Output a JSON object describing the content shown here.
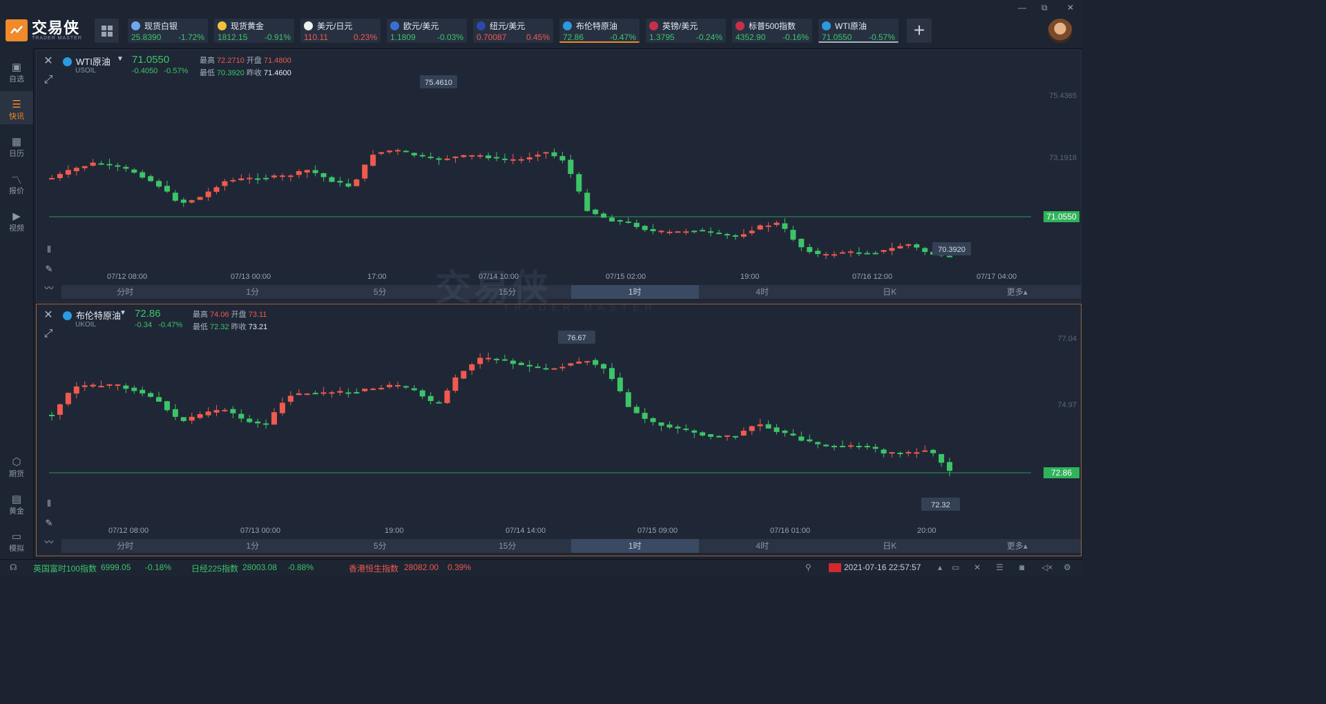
{
  "app": {
    "logo_text": "交易侠",
    "logo_sub": "TRADER MASTER",
    "window_controls": [
      "—",
      "⧉",
      "✕"
    ]
  },
  "quotes": [
    {
      "name": "现货白银",
      "price": "25.8390",
      "change": "-1.72%",
      "dir": "dn",
      "icon": "silver-coin-icon",
      "color": "#6ea8f0"
    },
    {
      "name": "现货黄金",
      "price": "1812.15",
      "change": "-0.91%",
      "dir": "dn",
      "icon": "gold-coin-icon",
      "color": "#f0c23a"
    },
    {
      "name": "美元/日元",
      "price": "110.11",
      "change": "0.23%",
      "dir": "up",
      "icon": "japan-flag-icon",
      "color": "#f0f0f0"
    },
    {
      "name": "欧元/美元",
      "price": "1.1809",
      "change": "-0.03%",
      "dir": "dn",
      "icon": "eu-flag-icon",
      "color": "#3a6fd0"
    },
    {
      "name": "纽元/美元",
      "price": "0.70087",
      "change": "0.45%",
      "dir": "up",
      "icon": "nz-flag-icon",
      "color": "#2b4aa8"
    },
    {
      "name": "布伦特原油",
      "price": "72.86",
      "change": "-0.47%",
      "dir": "dn",
      "icon": "oil-icon",
      "color": "#2a9be0"
    },
    {
      "name": "英镑/美元",
      "price": "1.3795",
      "change": "-0.24%",
      "dir": "dn",
      "icon": "uk-flag-icon",
      "color": "#c8304a"
    },
    {
      "name": "标普500指数",
      "price": "4352.90",
      "change": "-0.16%",
      "dir": "dn",
      "icon": "us-flag-icon",
      "color": "#c8304a"
    },
    {
      "name": "WTI原油",
      "price": "71.0550",
      "change": "-0.57%",
      "dir": "dn",
      "icon": "oil-icon",
      "color": "#2a9be0"
    }
  ],
  "sidebar": {
    "items": [
      {
        "label": "自选",
        "icon": "bookmark-icon"
      },
      {
        "label": "快讯",
        "icon": "news-icon"
      },
      {
        "label": "日历",
        "icon": "calendar-icon"
      },
      {
        "label": "报价",
        "icon": "line-chart-icon"
      },
      {
        "label": "视频",
        "icon": "video-icon"
      }
    ],
    "bottom_items": [
      {
        "label": "期货",
        "icon": "futures-icon"
      },
      {
        "label": "黄金",
        "icon": "gold-icon"
      },
      {
        "label": "模拟",
        "icon": "simulate-icon"
      }
    ]
  },
  "panels": [
    {
      "title": "WTI原油",
      "code": "USOIL",
      "price": "71.0550",
      "change": "-0.4050",
      "change_pct": "-0.57%",
      "high_label": "最高",
      "high": "72.2710",
      "open_label": "开盘",
      "open": "71.4800",
      "low_label": "最低",
      "low": "70.3920",
      "prev_label": "昨收",
      "prev": "71.4600",
      "y_axis": [
        "75.4365",
        "73.1918"
      ],
      "current_tag": "71.0550",
      "max_label": "75.4610",
      "min_label": "70.3920",
      "x_axis": [
        "07/12 08:00",
        "07/13 00:00",
        "17:00",
        "07/14 10:00",
        "07/15 02:00",
        "19:00",
        "07/16 12:00",
        "07/17 04:00"
      ]
    },
    {
      "title": "布伦特原油",
      "code": "UKOIL",
      "price": "72.86",
      "change": "-0.34",
      "change_pct": "-0.47%",
      "high_label": "最高",
      "high": "74.06",
      "open_label": "开盘",
      "open": "73.11",
      "low_label": "最低",
      "low": "72.32",
      "prev_label": "昨收",
      "prev": "73.21",
      "y_axis": [
        "77.04",
        "74.97"
      ],
      "current_tag": "72.86",
      "max_label": "76.67",
      "min_label": "72.32",
      "x_axis": [
        "07/12 08:00",
        "07/13 00:00",
        "19:00",
        "07/14 14:00",
        "07/15 09:00",
        "07/16 01:00",
        "20:00"
      ]
    }
  ],
  "timeframes": [
    "分时",
    "1分",
    "5分",
    "15分",
    "1时",
    "4时",
    "日K",
    "更多▴"
  ],
  "selected_timeframe": "1时",
  "bottom_ticker": [
    {
      "name": "英国富时100指数",
      "price": "6999.05",
      "change": "-0.18%",
      "dir": "dn"
    },
    {
      "name": "日经225指数",
      "price": "28003.08",
      "change": "-0.88%",
      "dir": "dn"
    },
    {
      "name": "香港恒生指数",
      "price": "28082.00",
      "change": "0.39%",
      "dir": "up"
    }
  ],
  "datetime": "2021-07-16 22:57:57",
  "watermark": "交易侠",
  "watermark_sub": "TRADER MASTER",
  "colors": {
    "up": "#f05a4f",
    "down": "#3cc568",
    "accent": "#f08a2a"
  }
}
